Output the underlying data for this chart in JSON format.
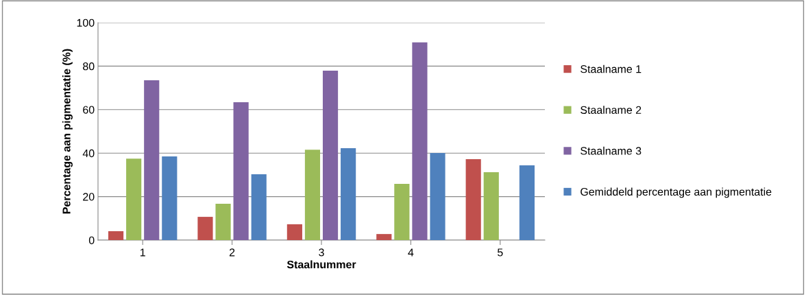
{
  "chart_data": {
    "type": "bar",
    "xlabel": "Staalnummer",
    "ylabel": "Percentage aan pigmentatie (%)",
    "categories": [
      "1",
      "2",
      "3",
      "4",
      "5"
    ],
    "series": [
      {
        "name": "Staalname 1",
        "color": "#c0504d",
        "values": [
          4.1,
          10.7,
          7.3,
          2.8,
          37.2
        ]
      },
      {
        "name": "Staalname 2",
        "color": "#9bbb59",
        "values": [
          37.5,
          16.7,
          41.6,
          25.9,
          31.2
        ]
      },
      {
        "name": "Staalname 3",
        "color": "#8064a2",
        "values": [
          73.5,
          63.4,
          77.9,
          90.9,
          null
        ]
      },
      {
        "name": "Gemiddeld percentage aan pigmentatie",
        "color": "#4f81bd",
        "values": [
          38.5,
          30.3,
          42.3,
          40.1,
          34.4
        ]
      }
    ],
    "ylim": [
      0,
      100
    ],
    "yticks": [
      0,
      20,
      40,
      60,
      80,
      100
    ],
    "grid": "y",
    "legend": "right"
  }
}
